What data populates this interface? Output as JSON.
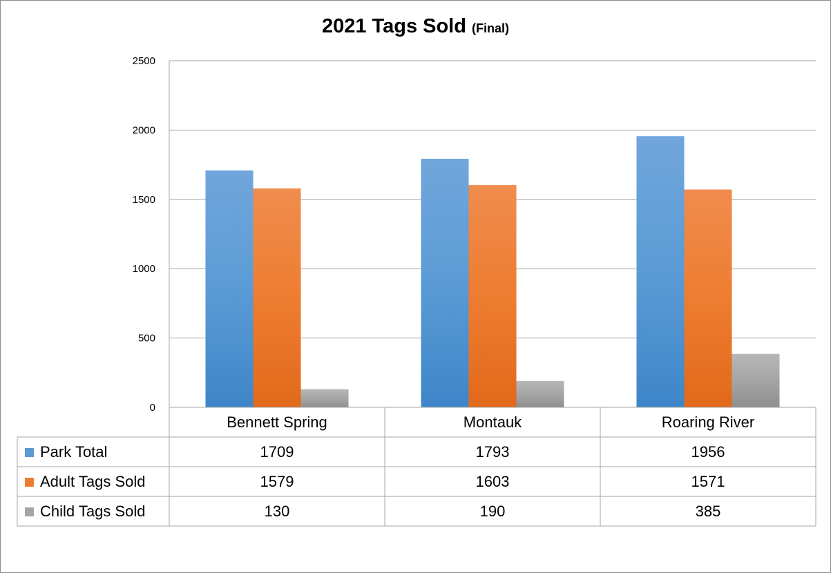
{
  "chart_data": {
    "type": "bar",
    "title": "2021 Tags Sold",
    "title_note": "(Final)",
    "categories": [
      "Bennett Spring",
      "Montauk",
      "Roaring River"
    ],
    "series": [
      {
        "name": "Park Total",
        "values": [
          1709,
          1793,
          1956
        ],
        "color": "#5b9bd5",
        "color_light": "#71a6dc",
        "color_dark": "#3e86c9"
      },
      {
        "name": "Adult Tags Sold",
        "values": [
          1579,
          1603,
          1571
        ],
        "color": "#ed7d31",
        "color_light": "#f08c4e",
        "color_dark": "#e2691b"
      },
      {
        "name": "Child Tags Sold",
        "values": [
          130,
          190,
          385
        ],
        "color": "#a5a5a5",
        "color_light": "#b7b7b7",
        "color_dark": "#8f8f8f"
      }
    ],
    "ylim": [
      0,
      2500
    ],
    "yticks": [
      0,
      500,
      1000,
      1500,
      2000,
      2500
    ],
    "ytick_labels": [
      "0",
      "500",
      "1000",
      "1500",
      "2000",
      "2500"
    ],
    "grid": true,
    "legend_placement": "data-table",
    "data_table": true
  }
}
